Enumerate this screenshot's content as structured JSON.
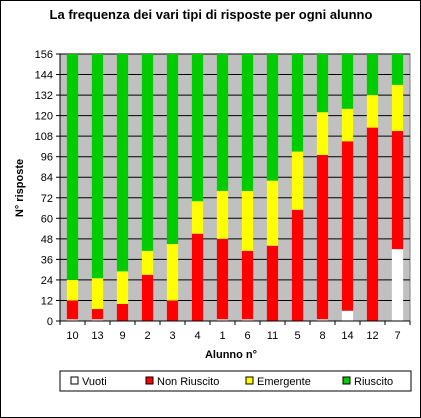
{
  "chart_data": {
    "type": "bar",
    "stacked": true,
    "title": "La frequenza dei vari tipi di risposte per ogni alunno",
    "xlabel": "Alunno n°",
    "ylabel": "N° risposte",
    "ylim": [
      0,
      156
    ],
    "yticks": [
      0,
      12,
      24,
      36,
      48,
      60,
      72,
      84,
      96,
      108,
      120,
      132,
      144,
      156
    ],
    "grid": true,
    "legend_position": "bottom",
    "categories": [
      "10",
      "13",
      "9",
      "2",
      "3",
      "4",
      "1",
      "6",
      "11",
      "5",
      "8",
      "14",
      "12",
      "7"
    ],
    "series": [
      {
        "name": "Vuoti",
        "color": "#ffffff",
        "values": [
          1,
          1,
          0,
          0,
          0,
          0,
          1,
          1,
          0,
          0,
          1,
          6,
          0,
          42
        ]
      },
      {
        "name": "Non Riuscito",
        "color": "#ff0000",
        "values": [
          11,
          6,
          10,
          27,
          12,
          51,
          47,
          40,
          44,
          65,
          96,
          99,
          113,
          69
        ]
      },
      {
        "name": "Emergente",
        "color": "#ffff00",
        "values": [
          12,
          18,
          19,
          14,
          33,
          19,
          28,
          35,
          38,
          34,
          25,
          19,
          19,
          27
        ]
      },
      {
        "name": "Riuscito",
        "color": "#00cc00",
        "values": [
          132,
          131,
          127,
          115,
          111,
          86,
          80,
          80,
          74,
          57,
          34,
          32,
          24,
          18
        ]
      }
    ]
  }
}
